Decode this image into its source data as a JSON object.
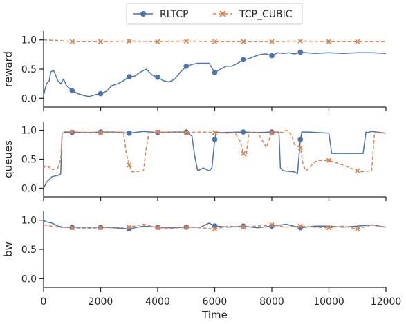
{
  "legend": {
    "items": [
      {
        "label": "RLTCP",
        "color": "#4c72b0",
        "marker": "circle"
      },
      {
        "label": "TCP_CUBIC",
        "color": "#dd8452",
        "marker": "x"
      }
    ]
  },
  "chart_data": [
    {
      "type": "line",
      "ylabel": "reward",
      "xlim": [
        0,
        12000
      ],
      "ylim": [
        -0.15,
        1.15
      ],
      "yticks": [
        0.0,
        0.5,
        1.0
      ],
      "ytick_labels": [
        "0.0",
        "0.5",
        "1.0"
      ],
      "xticks": [
        0,
        2000,
        4000,
        6000,
        8000,
        10000,
        12000
      ],
      "series": [
        {
          "name": "RLTCP",
          "color": "#4c72b0",
          "marker": "circle",
          "x": [
            0,
            100,
            200,
            250,
            350,
            420,
            500,
            600,
            700,
            800,
            1000,
            1200,
            1400,
            1600,
            1800,
            2000,
            2200,
            2400,
            2600,
            2800,
            3000,
            3200,
            3400,
            3600,
            3800,
            4000,
            4200,
            4400,
            4600,
            4800,
            5000,
            5200,
            5400,
            5600,
            5800,
            6000,
            6200,
            6400,
            6600,
            6800,
            7000,
            7200,
            7400,
            7600,
            7800,
            8000,
            8200,
            8400,
            8600,
            8800,
            9000,
            9500,
            10000,
            10500,
            11000,
            11500,
            12000
          ],
          "y": [
            0.05,
            0.25,
            0.3,
            0.45,
            0.48,
            0.4,
            0.3,
            0.25,
            0.33,
            0.22,
            0.13,
            0.08,
            0.05,
            0.03,
            0.06,
            0.08,
            0.12,
            0.22,
            0.25,
            0.3,
            0.37,
            0.38,
            0.45,
            0.5,
            0.4,
            0.36,
            0.3,
            0.28,
            0.33,
            0.45,
            0.55,
            0.58,
            0.6,
            0.6,
            0.6,
            0.44,
            0.5,
            0.55,
            0.55,
            0.6,
            0.66,
            0.68,
            0.72,
            0.75,
            0.76,
            0.73,
            0.78,
            0.77,
            0.78,
            0.76,
            0.79,
            0.77,
            0.78,
            0.77,
            0.78,
            0.78,
            0.77
          ],
          "marker_x": [
            1000,
            2000,
            3000,
            4000,
            5000,
            6000,
            7000,
            8000,
            9000
          ],
          "marker_y": [
            0.13,
            0.08,
            0.37,
            0.36,
            0.55,
            0.44,
            0.66,
            0.73,
            0.79
          ]
        },
        {
          "name": "TCP_CUBIC",
          "color": "#dd8452",
          "marker": "x",
          "x": [
            0,
            500,
            1000,
            2000,
            3000,
            4000,
            5000,
            6000,
            7000,
            8000,
            9000,
            10000,
            11000,
            12000
          ],
          "y": [
            1.0,
            0.99,
            0.97,
            0.97,
            0.98,
            0.97,
            0.98,
            0.97,
            0.97,
            0.97,
            0.98,
            0.97,
            0.97,
            0.97
          ],
          "marker_x": [
            1000,
            2000,
            3000,
            4000,
            5000,
            6000,
            7000,
            8000,
            9000,
            10000,
            11000
          ],
          "marker_y": [
            0.97,
            0.97,
            0.98,
            0.97,
            0.98,
            0.97,
            0.97,
            0.97,
            0.98,
            0.97,
            0.97
          ]
        }
      ]
    },
    {
      "type": "line",
      "ylabel": "queues",
      "xlim": [
        0,
        12000
      ],
      "ylim": [
        -0.15,
        1.15
      ],
      "yticks": [
        0.0,
        0.5,
        1.0
      ],
      "ytick_labels": [
        "0.0",
        "0.5",
        "1.0"
      ],
      "xticks": [
        0,
        2000,
        4000,
        6000,
        8000,
        10000,
        12000
      ],
      "series": [
        {
          "name": "RLTCP",
          "color": "#4c72b0",
          "marker": "circle",
          "x": [
            0,
            50,
            100,
            200,
            300,
            500,
            600,
            650,
            800,
            1500,
            2000,
            2500,
            3000,
            3500,
            4000,
            4500,
            5000,
            5200,
            5300,
            5400,
            5600,
            5800,
            5900,
            6000,
            6050,
            6200,
            7000,
            7500,
            8000,
            8250,
            8300,
            8400,
            8800,
            8900,
            9000,
            9050,
            9100,
            9300,
            10000,
            10100,
            10200,
            11200,
            11300,
            11350,
            11500,
            12000
          ],
          "y": [
            0.0,
            0.05,
            0.1,
            0.15,
            0.2,
            0.22,
            0.25,
            0.95,
            0.97,
            0.96,
            0.97,
            0.97,
            0.95,
            0.98,
            0.96,
            0.97,
            0.97,
            0.9,
            0.55,
            0.3,
            0.35,
            0.3,
            0.35,
            0.84,
            0.97,
            0.96,
            0.97,
            0.96,
            0.97,
            0.97,
            0.35,
            0.3,
            0.28,
            0.25,
            0.84,
            0.97,
            0.97,
            0.97,
            0.95,
            0.6,
            0.6,
            0.6,
            0.97,
            0.96,
            0.98,
            0.95
          ],
          "marker_x": [
            1000,
            2000,
            3000,
            4000,
            5000,
            6000,
            7000,
            8000,
            9000
          ],
          "marker_y": [
            0.96,
            0.97,
            0.95,
            0.96,
            0.97,
            0.84,
            0.97,
            0.97,
            0.84
          ]
        },
        {
          "name": "TCP_CUBIC",
          "color": "#dd8452",
          "marker": "x",
          "x": [
            0,
            100,
            300,
            500,
            600,
            650,
            700,
            1000,
            2000,
            2800,
            2900,
            3000,
            3100,
            3500,
            3600,
            3700,
            4000,
            5000,
            5500,
            6000,
            6500,
            6700,
            6900,
            7000,
            7100,
            7200,
            7400,
            7500,
            7700,
            7800,
            8000,
            8200,
            8400,
            8500,
            8600,
            8700,
            8800,
            9000,
            9100,
            9200,
            9500,
            9600,
            10000,
            10500,
            11000,
            11050,
            11500,
            11600,
            12000
          ],
          "y": [
            0.35,
            0.4,
            0.32,
            0.35,
            0.5,
            0.95,
            0.98,
            0.97,
            0.96,
            0.97,
            0.6,
            0.4,
            0.28,
            0.3,
            0.7,
            0.96,
            0.97,
            0.96,
            0.97,
            0.96,
            0.95,
            0.96,
            0.8,
            0.6,
            0.55,
            0.96,
            0.97,
            0.96,
            0.8,
            0.7,
            0.96,
            0.97,
            0.96,
            1.0,
            0.98,
            0.9,
            0.75,
            0.7,
            0.4,
            0.3,
            0.45,
            0.48,
            0.48,
            0.4,
            0.3,
            0.28,
            0.3,
            0.96,
            0.95
          ],
          "marker_x": [
            1000,
            2000,
            3000,
            4000,
            5000,
            6000,
            7000,
            8000,
            9000,
            10000,
            11000
          ],
          "marker_y": [
            0.97,
            0.96,
            0.4,
            0.97,
            0.96,
            0.96,
            0.6,
            0.96,
            0.7,
            0.48,
            0.3
          ]
        }
      ]
    },
    {
      "type": "line",
      "ylabel": "bw",
      "xlabel": "Time",
      "xlim": [
        0,
        12000
      ],
      "ylim": [
        -0.15,
        1.15
      ],
      "yticks": [
        0.0,
        0.5,
        1.0
      ],
      "ytick_labels": [
        "0.0",
        "0.5",
        "1.0"
      ],
      "xticks": [
        0,
        2000,
        4000,
        6000,
        8000,
        10000,
        12000
      ],
      "xtick_labels": [
        "0",
        "2000",
        "4000",
        "6000",
        "8000",
        "10000",
        "12000"
      ],
      "series": [
        {
          "name": "RLTCP",
          "color": "#4c72b0",
          "marker": "circle",
          "x": [
            0,
            100,
            300,
            500,
            700,
            1000,
            1500,
            2000,
            2500,
            3000,
            3500,
            4000,
            4500,
            5000,
            5500,
            5800,
            6000,
            6500,
            7000,
            7500,
            8000,
            8500,
            9000,
            9500,
            10000,
            10500,
            11000,
            11500,
            12000
          ],
          "y": [
            1.0,
            0.97,
            0.95,
            0.9,
            0.88,
            0.88,
            0.88,
            0.88,
            0.87,
            0.85,
            0.9,
            0.88,
            0.87,
            0.88,
            0.88,
            0.95,
            0.9,
            0.88,
            0.9,
            0.87,
            0.9,
            0.93,
            0.87,
            0.9,
            0.9,
            0.88,
            0.9,
            0.92,
            0.88
          ],
          "marker_x": [
            1000,
            2000,
            3000,
            4000,
            5000,
            6000,
            7000,
            8000,
            9000
          ],
          "marker_y": [
            0.88,
            0.88,
            0.85,
            0.88,
            0.88,
            0.9,
            0.9,
            0.9,
            0.87
          ]
        },
        {
          "name": "TCP_CUBIC",
          "color": "#dd8452",
          "marker": "x",
          "x": [
            0,
            500,
            1000,
            1500,
            2000,
            2500,
            3000,
            3500,
            4000,
            4500,
            5000,
            5500,
            6000,
            6500,
            7000,
            7500,
            8000,
            8500,
            9000,
            9500,
            10000,
            10500,
            11000,
            11500,
            12000
          ],
          "y": [
            0.92,
            0.88,
            0.87,
            0.86,
            0.87,
            0.88,
            0.88,
            0.93,
            0.87,
            0.86,
            0.88,
            0.87,
            0.85,
            0.9,
            0.88,
            0.9,
            0.92,
            0.88,
            0.9,
            0.88,
            0.87,
            0.9,
            0.85,
            0.92,
            0.88
          ],
          "marker_x": [
            1000,
            2000,
            3000,
            4000,
            5000,
            6000,
            7000,
            8000,
            9000,
            10000,
            11000
          ],
          "marker_y": [
            0.87,
            0.87,
            0.88,
            0.87,
            0.88,
            0.85,
            0.88,
            0.92,
            0.9,
            0.87,
            0.85
          ]
        }
      ]
    }
  ]
}
